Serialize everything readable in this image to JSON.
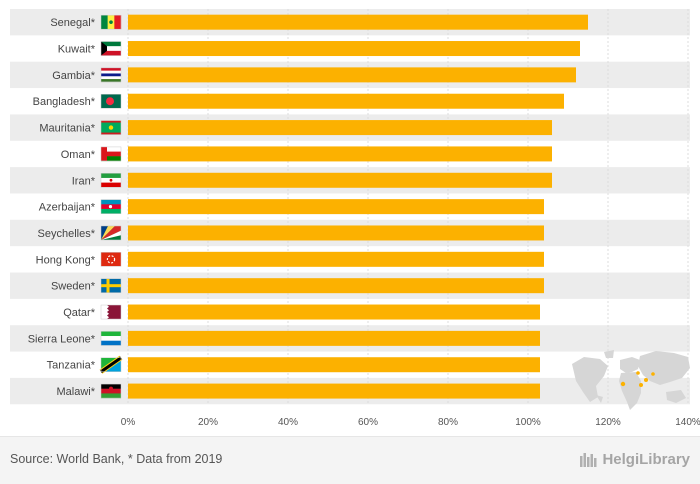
{
  "chart_data": {
    "type": "bar",
    "orientation": "horizontal",
    "categories": [
      "Senegal*",
      "Kuwait*",
      "Gambia*",
      "Bangladesh*",
      "Mauritania*",
      "Oman*",
      "Iran*",
      "Azerbaijan*",
      "Seychelles*",
      "Hong Kong*",
      "Sweden*",
      "Qatar*",
      "Sierra Leone*",
      "Tanzania*",
      "Malawi*"
    ],
    "values": [
      115,
      113,
      112,
      109,
      106,
      106,
      106,
      104,
      104,
      104,
      104,
      103,
      103,
      103,
      103
    ],
    "unit": "%",
    "xlim": [
      0,
      140
    ],
    "xticks": [
      0,
      20,
      40,
      60,
      80,
      100,
      120,
      140
    ],
    "tick_suffix": "%",
    "grid": true,
    "colors": {
      "bar": "#FCB100",
      "row_band": "#ECECEC",
      "grid": "#DDDDDD",
      "map": "#D6D6D6",
      "map_highlight": "#FCB100"
    },
    "flags": [
      "senegal-flag",
      "kuwait-flag",
      "gambia-flag",
      "bangladesh-flag",
      "mauritania-flag",
      "oman-flag",
      "iran-flag",
      "azerbaijan-flag",
      "seychelles-flag",
      "hong-kong-flag",
      "sweden-flag",
      "qatar-flag",
      "sierra-leone-flag",
      "tanzania-flag",
      "malawi-flag"
    ]
  },
  "footer": {
    "source": "Source: World Bank, * Data from 2019",
    "brand": "HelgiLibrary"
  }
}
